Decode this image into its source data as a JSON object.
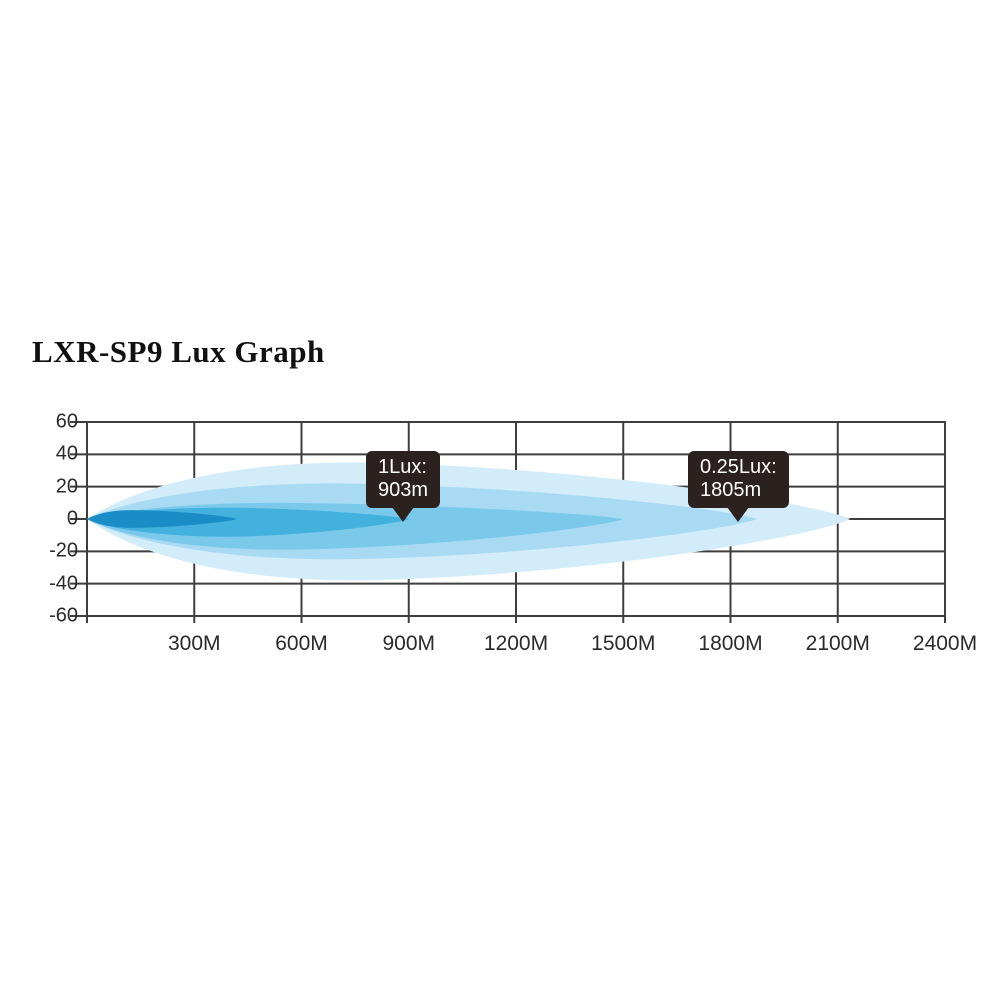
{
  "title": "LXR-SP9 Lux Graph",
  "chart_data": {
    "type": "area",
    "title": "LXR-SP9 Lux Graph",
    "x_unit": "M",
    "x_ticks": [
      "300M",
      "600M",
      "900M",
      "1200M",
      "1500M",
      "1800M",
      "2100M",
      "2400M"
    ],
    "x_tick_values": [
      300,
      600,
      900,
      1200,
      1500,
      1800,
      2100,
      2400
    ],
    "x_range_m": [
      0,
      2400
    ],
    "y_ticks": [
      "60",
      "40",
      "20",
      "0",
      "-20",
      "-40",
      "-60"
    ],
    "y_tick_values": [
      60,
      40,
      20,
      0,
      -20,
      -40,
      -60
    ],
    "y_range": [
      -60,
      60
    ],
    "grid": true,
    "grid_color": "#3e3e3e",
    "background_color": "#ffffff",
    "beam_layers": [
      {
        "name": "spill-outer",
        "color": "#d3ecf9",
        "reach_m": 2135,
        "peak_m": 750,
        "top_halfwidth": 35,
        "bottom_halfwidth": 38
      },
      {
        "name": "spill-inner",
        "color": "#a8daf3",
        "reach_m": 1875,
        "peak_m": 700,
        "top_halfwidth": 22,
        "bottom_halfwidth": 25
      },
      {
        "name": "mid-beam",
        "color": "#7bc9ea",
        "reach_m": 1500,
        "peak_m": 550,
        "top_halfwidth": 10,
        "bottom_halfwidth": 19
      },
      {
        "name": "hot-beam",
        "color": "#42b1de",
        "reach_m": 903,
        "peak_m": 400,
        "top_halfwidth": 7,
        "bottom_halfwidth": 11
      },
      {
        "name": "hotspot-core",
        "color": "#1b8dc6",
        "reach_m": 420,
        "peak_m": 130,
        "top_halfwidth": 5.5,
        "bottom_halfwidth": 5.5
      }
    ],
    "annotations": [
      {
        "lux": "1Lux:",
        "distance": "903m",
        "anchor_m": 903
      },
      {
        "lux": "0.25Lux:",
        "distance": "1805m",
        "anchor_m": 1805
      }
    ]
  },
  "callouts": {
    "c1": {
      "line1": "1Lux:",
      "line2": "903m"
    },
    "c2": {
      "line1": "0.25Lux:",
      "line2": "1805m"
    }
  }
}
